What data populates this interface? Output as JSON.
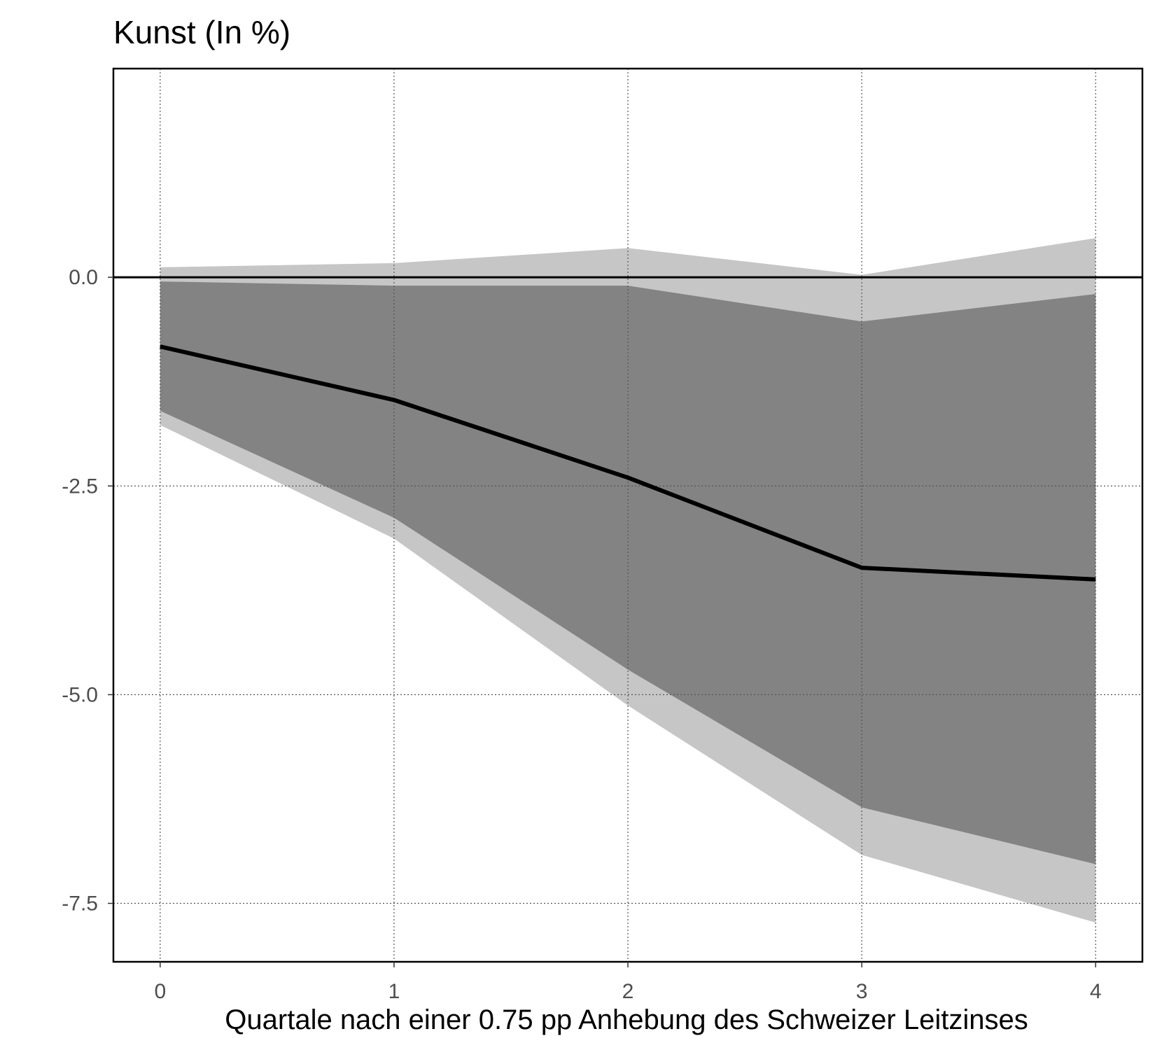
{
  "chart_data": {
    "type": "area",
    "title": "Kunst (In %)",
    "xlabel": "Quartale nach einer 0.75 pp Anhebung des Schweizer Leitzinses",
    "ylabel": "",
    "x": [
      0,
      1,
      2,
      3,
      4
    ],
    "x_tick_labels": [
      "0",
      "1",
      "2",
      "3",
      "4"
    ],
    "y_ticks": [
      0.0,
      -2.5,
      -5.0,
      -7.5
    ],
    "y_tick_labels": [
      "0.0",
      "-2.5",
      "-5.0",
      "-7.5"
    ],
    "xlim": [
      -0.2,
      4.2
    ],
    "ylim": [
      -8.2,
      2.5
    ],
    "grid": true,
    "zero_line": 0,
    "series": [
      {
        "role": "outer-band",
        "color": "#c6c6c6",
        "upper": [
          0.12,
          0.17,
          0.35,
          0.03,
          0.47
        ],
        "lower": [
          -1.77,
          -3.13,
          -5.13,
          -6.92,
          -7.73
        ]
      },
      {
        "role": "inner-band",
        "color": "#838383",
        "upper": [
          -0.05,
          -0.1,
          -0.1,
          -0.53,
          -0.2
        ],
        "lower": [
          -1.6,
          -2.88,
          -4.7,
          -6.35,
          -7.03
        ]
      },
      {
        "role": "median",
        "color": "#000000",
        "values": [
          -0.83,
          -1.47,
          -2.4,
          -3.48,
          -3.62
        ]
      }
    ]
  }
}
